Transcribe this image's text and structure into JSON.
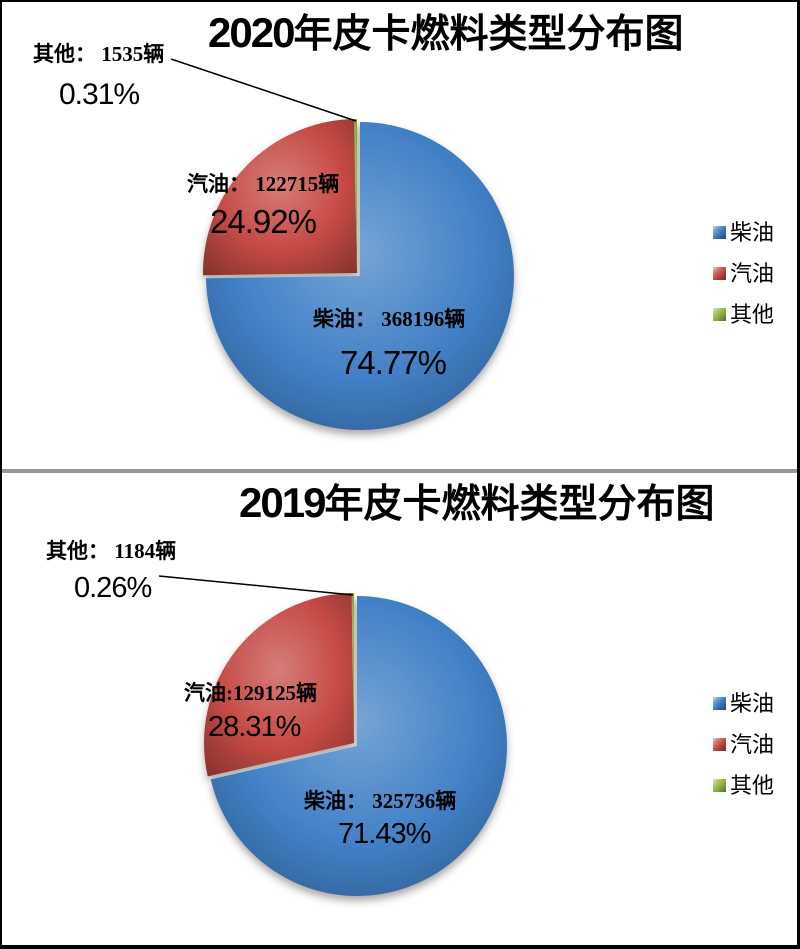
{
  "frame": {
    "background": "#FFFFFF",
    "border_color": "#000000",
    "divider_color": "#979797"
  },
  "charts": [
    {
      "title_year": "2020",
      "title_rest": "年皮卡燃料类型分布图",
      "labels": {
        "other_value": "其他： 1535辆",
        "other_pct": "0.31%",
        "gas_value": "汽油： 122715辆",
        "gas_pct": "24.92%",
        "diesel_value": "柴油： 368196辆",
        "diesel_pct": "74.77%"
      },
      "legend": [
        {
          "label": "柴油",
          "color": "#3A76BC"
        },
        {
          "label": "汽油",
          "color": "#BE4743"
        },
        {
          "label": "其他",
          "color": "#8FB03C"
        }
      ]
    },
    {
      "title_year": "2019",
      "title_rest": "年皮卡燃料类型分布图",
      "labels": {
        "other_value": "其他： 1184辆",
        "other_pct": "0.26%",
        "gas_value": "汽油:129125辆",
        "gas_pct": "28.31%",
        "diesel_value": "柴油： 325736辆",
        "diesel_pct": "71.43%"
      },
      "legend": [
        {
          "label": "柴油",
          "color": "#3A76BC"
        },
        {
          "label": "汽油",
          "color": "#BE4743"
        },
        {
          "label": "其他",
          "color": "#8FB03C"
        }
      ]
    }
  ],
  "chart_data": [
    {
      "type": "pie",
      "title": "2020年皮卡燃料类型分布图",
      "unit": "辆",
      "start_angle": "12-oclock",
      "direction": "clockwise",
      "legend_position": "right",
      "slices": [
        {
          "label": "柴油",
          "value": 368196,
          "pct": 74.77,
          "color": "#4180C6"
        },
        {
          "label": "汽油",
          "value": 122715,
          "pct": 24.92,
          "color": "#C64A45"
        },
        {
          "label": "其他",
          "value": 1535,
          "pct": 0.31,
          "color": "#8FB03C"
        }
      ]
    },
    {
      "type": "pie",
      "title": "2019年皮卡燃料类型分布图",
      "unit": "辆",
      "start_angle": "12-oclock",
      "direction": "clockwise",
      "legend_position": "right",
      "slices": [
        {
          "label": "柴油",
          "value": 325736,
          "pct": 71.43,
          "color": "#4180C6"
        },
        {
          "label": "汽油",
          "value": 129125,
          "pct": 28.31,
          "color": "#C64A45"
        },
        {
          "label": "其他",
          "value": 1184,
          "pct": 0.26,
          "color": "#8FB03C"
        }
      ]
    }
  ]
}
